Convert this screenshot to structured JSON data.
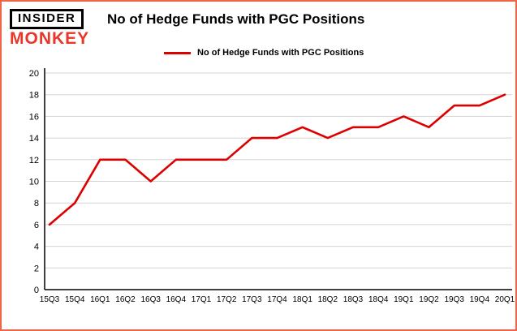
{
  "logo": {
    "line1": "INSIDER",
    "line2": "MONKEY"
  },
  "header": {
    "title": "No of Hedge Funds with PGC Positions"
  },
  "legend": {
    "label": "No of Hedge Funds with PGC Positions"
  },
  "colors": {
    "border": "#ef6548",
    "line": "#dd0000",
    "grid": "#d3d3d3",
    "axis": "#000000",
    "logo_red": "#e8362a"
  },
  "chart_data": {
    "type": "line",
    "title": "No of Hedge Funds with PGC Positions",
    "xlabel": "",
    "ylabel": "",
    "categories": [
      "15Q3",
      "15Q4",
      "16Q1",
      "16Q2",
      "16Q3",
      "16Q4",
      "17Q1",
      "17Q2",
      "17Q3",
      "17Q4",
      "18Q1",
      "18Q2",
      "18Q3",
      "18Q4",
      "19Q1",
      "19Q2",
      "19Q3",
      "19Q4",
      "20Q1"
    ],
    "values": [
      6,
      8,
      12,
      12,
      10,
      12,
      12,
      12,
      14,
      14,
      15,
      14,
      15,
      15,
      16,
      15,
      17,
      17,
      18
    ],
    "series": [
      {
        "name": "No of Hedge Funds with PGC Positions",
        "values": [
          6,
          8,
          12,
          12,
          10,
          12,
          12,
          12,
          14,
          14,
          15,
          14,
          15,
          15,
          16,
          15,
          17,
          17,
          18
        ]
      }
    ],
    "ylim": [
      0,
      20
    ],
    "ytick_step": 2,
    "grid": true,
    "legend_position": "top",
    "line_color": "#dd0000"
  }
}
